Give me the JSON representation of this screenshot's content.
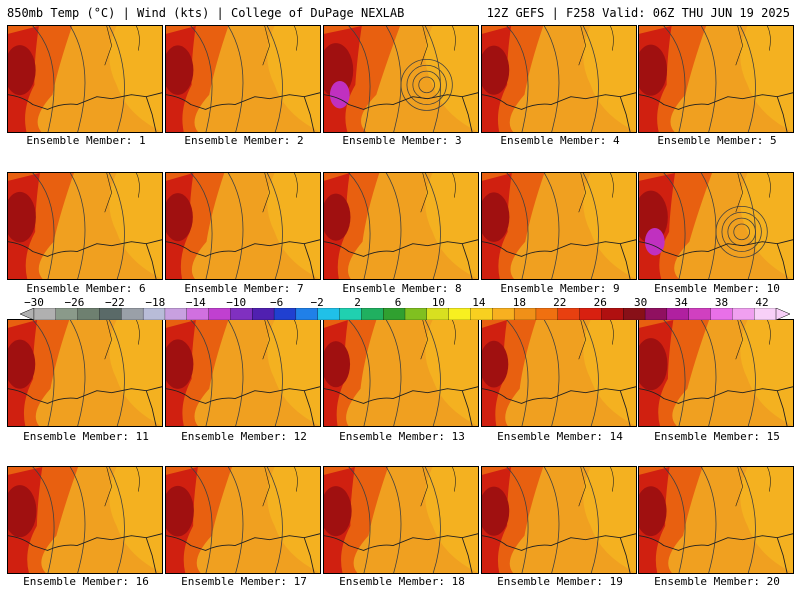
{
  "header": {
    "left": "850mb Temp (°C) | Wind (kts) | College of DuPage NEXLAB",
    "right": "12Z GEFS | F258 Valid: 06Z THU JUN 19 2025"
  },
  "members": [
    {
      "label": "Ensemble Member: 1",
      "heat": 0.75,
      "high": false
    },
    {
      "label": "Ensemble Member: 2",
      "heat": 0.72,
      "high": false
    },
    {
      "label": "Ensemble Member: 3",
      "heat": 0.95,
      "high": true
    },
    {
      "label": "Ensemble Member: 4",
      "heat": 0.7,
      "high": false
    },
    {
      "label": "Ensemble Member: 5",
      "heat": 0.8,
      "high": false
    },
    {
      "label": "Ensemble Member: 6",
      "heat": 0.78,
      "high": false
    },
    {
      "label": "Ensemble Member: 7",
      "heat": 0.65,
      "high": false
    },
    {
      "label": "Ensemble Member: 8",
      "heat": 0.6,
      "high": false
    },
    {
      "label": "Ensemble Member: 9",
      "heat": 0.72,
      "high": false
    },
    {
      "label": "Ensemble Member: 10",
      "heat": 0.9,
      "high": true
    },
    {
      "label": "Ensemble Member: 11",
      "heat": 0.7,
      "high": false
    },
    {
      "label": "Ensemble Member: 12",
      "heat": 0.72,
      "high": false
    },
    {
      "label": "Ensemble Member: 13",
      "heat": 0.55,
      "high": false
    },
    {
      "label": "Ensemble Member: 14",
      "heat": 0.58,
      "high": false
    },
    {
      "label": "Ensemble Member: 15",
      "heat": 0.85,
      "high": false
    },
    {
      "label": "Ensemble Member: 16",
      "heat": 0.85,
      "high": false
    },
    {
      "label": "Ensemble Member: 17",
      "heat": 0.78,
      "high": false
    },
    {
      "label": "Ensemble Member: 18",
      "heat": 0.75,
      "high": false
    },
    {
      "label": "Ensemble Member: 19",
      "heat": 0.7,
      "high": false
    },
    {
      "label": "Ensemble Member: 20",
      "heat": 0.74,
      "high": false
    }
  ],
  "colorbar": {
    "ticks": [
      "−30",
      "−26",
      "−22",
      "−18",
      "−14",
      "−10",
      "−6",
      "−2",
      "2",
      "6",
      "10",
      "14",
      "18",
      "22",
      "26",
      "30",
      "34",
      "38",
      "42"
    ],
    "colors": [
      "#b0b0b0",
      "#8a9a8a",
      "#6e8070",
      "#5a6a68",
      "#9aa0a8",
      "#b8bcd8",
      "#c8a0e0",
      "#d070e0",
      "#c040d0",
      "#8030c0",
      "#5020b0",
      "#2040d0",
      "#2080e8",
      "#20c0e8",
      "#20d0b0",
      "#20b060",
      "#30a030",
      "#80c020",
      "#d8e020",
      "#f8f020",
      "#f8d020",
      "#f8b020",
      "#f09018",
      "#f07010",
      "#e84010",
      "#d82010",
      "#b01010",
      "#881018",
      "#901060",
      "#b020a0",
      "#d040c0",
      "#e870e8",
      "#f0a0f0",
      "#f8d0f8"
    ]
  },
  "map_colors": {
    "base": "#f0a020",
    "warm": "#e86010",
    "hot": "#d02010",
    "hotter": "#a01010",
    "extreme": "#c030c0",
    "cool": "#f8c020",
    "contour": "#404040",
    "coast": "#202020"
  }
}
